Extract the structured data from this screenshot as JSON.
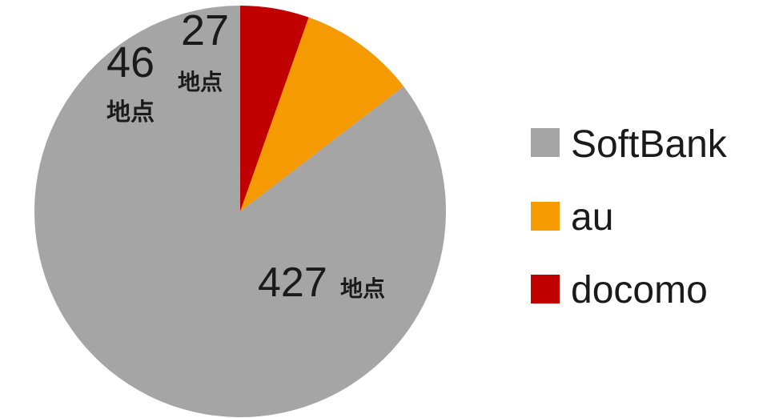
{
  "chart_data": {
    "type": "pie",
    "start": "12 o'clock",
    "direction": "counterclockwise",
    "unit": "地点",
    "slices": [
      {
        "label": "SoftBank",
        "value": 427,
        "color": "#a5a5a5",
        "data_label_number": "427",
        "data_label_unit": "地点"
      },
      {
        "label": "au",
        "value": 46,
        "color": "#f59a00",
        "data_label_number": "46",
        "data_label_unit": "地点"
      },
      {
        "label": "docomo",
        "value": 27,
        "color": "#c00000",
        "data_label_number": "27",
        "data_label_unit": "地点"
      }
    ],
    "legend": {
      "position": "right",
      "items": [
        {
          "label": "SoftBank",
          "color": "#a5a5a5"
        },
        {
          "label": "au",
          "color": "#f59a00"
        },
        {
          "label": "docomo",
          "color": "#c00000"
        }
      ]
    }
  }
}
